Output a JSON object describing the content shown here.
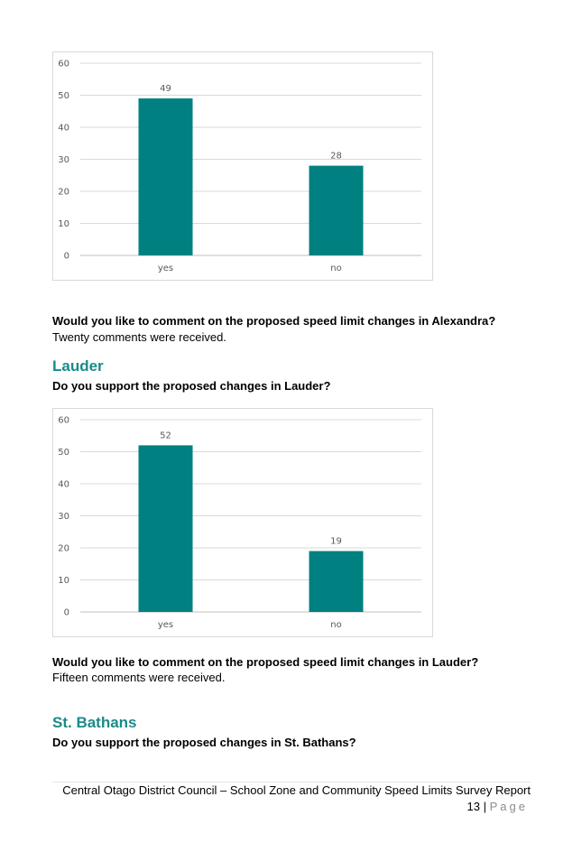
{
  "charts": {
    "alexandra": {
      "chart_data": {
        "type": "bar",
        "categories": [
          "yes",
          "no"
        ],
        "values": [
          49,
          28
        ],
        "ylim": [
          0,
          60
        ],
        "yticks": [
          0,
          10,
          20,
          30,
          40,
          50,
          60
        ],
        "color": "#008080",
        "grid": true,
        "data_labels": true
      }
    },
    "lauder": {
      "chart_data": {
        "type": "bar",
        "categories": [
          "yes",
          "no"
        ],
        "values": [
          52,
          19
        ],
        "ylim": [
          0,
          60
        ],
        "yticks": [
          0,
          10,
          20,
          30,
          40,
          50,
          60
        ],
        "color": "#008080",
        "grid": true,
        "data_labels": true
      }
    }
  },
  "alexandra": {
    "comment_question": "Would you like to comment on the proposed speed limit changes in Alexandra?",
    "comment_answer": "Twenty comments were received."
  },
  "lauder": {
    "heading": "Lauder",
    "support_question": "Do you support the proposed changes in Lauder?",
    "comment_question": "Would you like to comment on the proposed speed limit changes in Lauder?",
    "comment_answer": "Fifteen comments were received."
  },
  "st_bathans": {
    "heading": "St. Bathans",
    "support_question": "Do you support the proposed changes in St. Bathans?"
  },
  "footer": {
    "title": "Central Otago District Council – School Zone and Community Speed Limits Survey Report",
    "page_number": "13",
    "separator": "|",
    "page_word": "Page"
  }
}
